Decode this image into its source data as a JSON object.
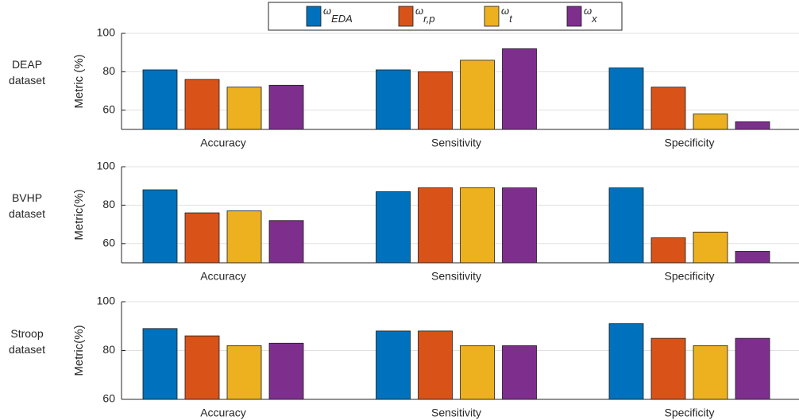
{
  "chart_data": [
    {
      "type": "bar",
      "label": [
        "DEAP",
        "dataset"
      ],
      "ylabel": "Metric (%)",
      "categories": [
        "Accuracy",
        "Sensitivity",
        "Specificity"
      ],
      "series": [
        {
          "name": "ωEDA",
          "color": "#0072bd",
          "values": [
            81,
            81,
            82
          ]
        },
        {
          "name": "ωr,p",
          "color": "#d95319",
          "values": [
            76,
            80,
            72
          ]
        },
        {
          "name": "ωt",
          "color": "#edb120",
          "values": [
            72,
            86,
            58
          ]
        },
        {
          "name": "ωx",
          "color": "#7e2f8e",
          "values": [
            73,
            92,
            54
          ]
        }
      ],
      "ylim": [
        50,
        100
      ],
      "yticks": [
        60,
        80,
        100
      ],
      "grid": true
    },
    {
      "type": "bar",
      "label": [
        "BVHP",
        "dataset"
      ],
      "ylabel": "Metric(%)",
      "categories": [
        "Accuracy",
        "Sensitivity",
        "Specificity"
      ],
      "series": [
        {
          "color": "#0072bd",
          "values": [
            88,
            87,
            89
          ]
        },
        {
          "color": "#d95319",
          "values": [
            76,
            89,
            63
          ]
        },
        {
          "color": "#edb120",
          "values": [
            77,
            89,
            66
          ]
        },
        {
          "color": "#7e2f8e",
          "values": [
            72,
            89,
            56
          ]
        }
      ],
      "ylim": [
        50,
        100
      ],
      "yticks": [
        60,
        80,
        100
      ],
      "grid": true
    },
    {
      "type": "bar",
      "label": [
        "Stroop",
        "dataset"
      ],
      "ylabel": "Metric(%)",
      "categories": [
        "Accuracy",
        "Sensitivity",
        "Specificity"
      ],
      "series": [
        {
          "color": "#0072bd",
          "values": [
            89,
            88,
            91
          ]
        },
        {
          "color": "#d95319",
          "values": [
            86,
            88,
            85
          ]
        },
        {
          "color": "#edb120",
          "values": [
            82,
            82,
            82
          ]
        },
        {
          "color": "#7e2f8e",
          "values": [
            83,
            82,
            85
          ]
        }
      ],
      "ylim": [
        60,
        100
      ],
      "yticks": [
        60,
        80,
        100
      ],
      "grid": true
    }
  ]
}
